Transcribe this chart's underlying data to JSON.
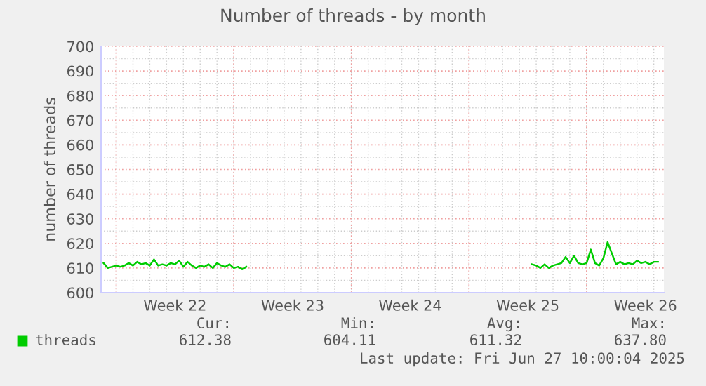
{
  "chart_data": {
    "type": "line",
    "title": "Number of threads - by month",
    "ylabel": "number of threads",
    "xlim": [
      "2025-05-25T02:24",
      "2025-06-27T14:24"
    ],
    "xticks": [
      {
        "value": "2025-05-26",
        "label": null
      },
      {
        "value": "2025-05-29T12:00",
        "label": "Week 22"
      },
      {
        "value": "2025-06-02",
        "label": null
      },
      {
        "value": "2025-06-05T12:00",
        "label": "Week 23"
      },
      {
        "value": "2025-06-09",
        "label": null
      },
      {
        "value": "2025-06-12T12:00",
        "label": "Week 24"
      },
      {
        "value": "2025-06-16",
        "label": null
      },
      {
        "value": "2025-06-19T12:00",
        "label": "Week 25"
      },
      {
        "value": "2025-06-23",
        "label": null
      },
      {
        "value": "2025-06-26T12:00",
        "label": "Week 26"
      }
    ],
    "ylim": [
      600,
      700
    ],
    "yticks": [
      600,
      610,
      620,
      630,
      640,
      650,
      660,
      670,
      680,
      690,
      700
    ],
    "grid": true,
    "legend": "bottom left",
    "marker": "none",
    "line_style": "solid",
    "series": [
      {
        "name": "threads",
        "color": "#00cc00",
        "x": [
          "2025-05-25T06:00",
          "2025-05-25T12:00",
          "2025-05-25T18:00",
          "2025-05-26T00:00",
          "2025-05-26T06:00",
          "2025-05-26T12:00",
          "2025-05-26T18:00",
          "2025-05-27T00:00",
          "2025-05-27T06:00",
          "2025-05-27T12:00",
          "2025-05-27T18:00",
          "2025-05-28T00:00",
          "2025-05-28T06:00",
          "2025-05-28T12:00",
          "2025-05-28T18:00",
          "2025-05-29T00:00",
          "2025-05-29T06:00",
          "2025-05-29T12:00",
          "2025-05-29T18:00",
          "2025-05-30T00:00",
          "2025-05-30T06:00",
          "2025-05-30T12:00",
          "2025-05-30T18:00",
          "2025-05-31T00:00",
          "2025-05-31T06:00",
          "2025-05-31T12:00",
          "2025-05-31T18:00",
          "2025-06-01T00:00",
          "2025-06-01T06:00",
          "2025-06-01T12:00",
          "2025-06-01T18:00",
          "2025-06-02T00:00",
          "2025-06-02T06:00",
          "2025-06-02T12:00",
          "2025-06-02T18:00",
          "2025-06-11T00:00",
          "2025-06-19T18:00",
          "2025-06-20T00:00",
          "2025-06-20T06:00",
          "2025-06-20T12:00",
          "2025-06-20T18:00",
          "2025-06-21T00:00",
          "2025-06-21T06:00",
          "2025-06-21T12:00",
          "2025-06-21T18:00",
          "2025-06-22T00:00",
          "2025-06-22T06:00",
          "2025-06-22T12:00",
          "2025-06-22T18:00",
          "2025-06-23T00:00",
          "2025-06-23T06:00",
          "2025-06-23T12:00",
          "2025-06-23T18:00",
          "2025-06-24T00:00",
          "2025-06-24T06:00",
          "2025-06-24T12:00",
          "2025-06-24T18:00",
          "2025-06-25T00:00",
          "2025-06-25T06:00",
          "2025-06-25T12:00",
          "2025-06-25T18:00",
          "2025-06-26T00:00",
          "2025-06-26T06:00",
          "2025-06-26T12:00",
          "2025-06-26T18:00",
          "2025-06-27T00:00",
          "2025-06-27T06:00"
        ],
        "values": [
          612,
          610,
          610.5,
          611,
          610.5,
          611,
          612,
          611,
          612.5,
          611.5,
          612,
          611,
          613.5,
          611,
          611.5,
          611,
          612,
          611.5,
          613,
          610.5,
          612.5,
          611,
          610,
          611,
          610.5,
          611.5,
          610,
          612,
          611,
          610.5,
          611.5,
          610,
          610.5,
          609.5,
          610.5,
          null,
          611.5,
          611,
          610,
          611.5,
          610,
          611,
          611.5,
          612,
          614.5,
          612,
          615,
          612,
          611.5,
          612,
          617.5,
          612,
          611,
          614,
          620.5,
          616,
          611.5,
          612.5,
          611.5,
          612,
          611.5,
          613,
          612,
          612.5,
          611.5,
          612.5,
          612.5
        ]
      }
    ],
    "annotations": [
      "Cur:",
      "Min:",
      "Avg:",
      "Max:",
      "612.38",
      "604.11",
      "611.32",
      "637.80",
      "Last update: Fri Jun 27 10:00:04 2025"
    ]
  }
}
